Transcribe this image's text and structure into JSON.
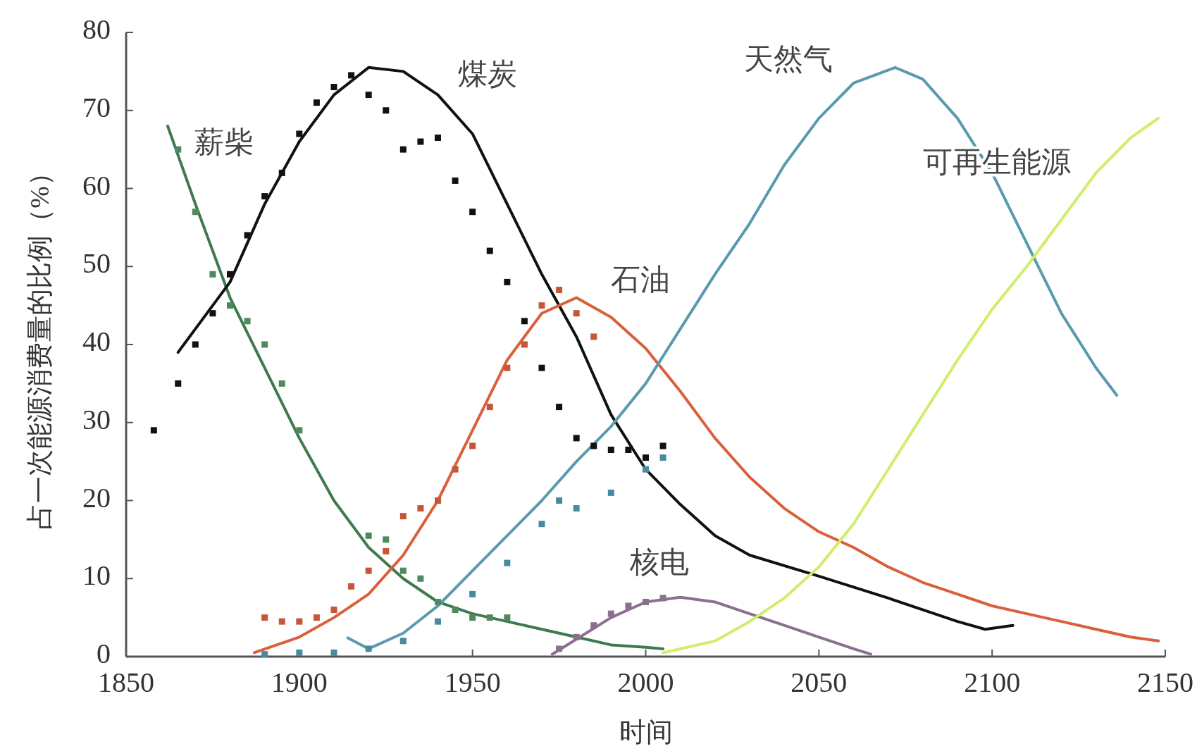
{
  "chart_data": {
    "type": "line",
    "xlabel": "时间",
    "ylabel": "占一次能源消费量的比例（%）",
    "xlim": [
      1850,
      2150
    ],
    "ylim": [
      0,
      80
    ],
    "xticks": [
      1850,
      1900,
      1950,
      2000,
      2050,
      2100,
      2150
    ],
    "yticks": [
      0,
      10,
      20,
      30,
      40,
      50,
      60,
      70,
      80
    ],
    "series": [
      {
        "name": "薪柴",
        "color": "#3f7a4f",
        "x": [
          1862,
          1870,
          1880,
          1890,
          1900,
          1910,
          1920,
          1930,
          1940,
          1950,
          1960,
          1970,
          1980,
          1990,
          2000,
          2005
        ],
        "values": [
          68,
          58,
          46,
          37,
          28,
          20,
          14,
          10,
          7,
          5.5,
          4.5,
          3.5,
          2.5,
          1.5,
          1.2,
          1
        ]
      },
      {
        "name": "煤炭",
        "color": "#111111",
        "x": [
          1865,
          1880,
          1890,
          1900,
          1910,
          1920,
          1930,
          1940,
          1950,
          1960,
          1970,
          1980,
          1990,
          2000,
          2010,
          2020,
          2030,
          2050,
          2070,
          2090,
          2098,
          2106
        ],
        "values": [
          39,
          48,
          58,
          66,
          72,
          75.5,
          75,
          72,
          67,
          58,
          49,
          41,
          31,
          24,
          19.5,
          15.5,
          13,
          10.3,
          7.5,
          4.5,
          3.5,
          4
        ]
      },
      {
        "name": "石油",
        "color": "#d9603b",
        "x": [
          1887,
          1900,
          1910,
          1920,
          1930,
          1940,
          1950,
          1960,
          1970,
          1980,
          1990,
          2000,
          2010,
          2020,
          2030,
          2040,
          2050,
          2060,
          2070,
          2080,
          2090,
          2100,
          2110,
          2120,
          2130,
          2140,
          2148
        ],
        "values": [
          0.5,
          2.5,
          5,
          8,
          13,
          20,
          29,
          38,
          44,
          46,
          43.5,
          39.5,
          34,
          28,
          23,
          19,
          16,
          14,
          11.5,
          9.5,
          8,
          6.5,
          5.5,
          4.5,
          3.5,
          2.5,
          2
        ]
      },
      {
        "name": "天然气",
        "color": "#5a9ab0",
        "x": [
          1914,
          1920,
          1930,
          1940,
          1950,
          1960,
          1970,
          1980,
          1990,
          2000,
          2010,
          2020,
          2030,
          2040,
          2050,
          2060,
          2072,
          2080,
          2090,
          2100,
          2110,
          2120,
          2130,
          2136
        ],
        "values": [
          2.4,
          1,
          3,
          6.5,
          11,
          15.5,
          20,
          25,
          29.5,
          35,
          42,
          49,
          55.5,
          63,
          69,
          73.5,
          75.5,
          74,
          69,
          62,
          53,
          44,
          37,
          33.5
        ]
      },
      {
        "name": "核电",
        "color": "#8a6f8f",
        "x": [
          1973,
          1990,
          2000,
          2010,
          2020,
          2030,
          2040,
          2050,
          2060,
          2065
        ],
        "values": [
          0.3,
          5,
          7,
          7.6,
          7,
          5.5,
          4,
          2.5,
          1,
          0.3
        ]
      },
      {
        "name": "可再生能源",
        "color": "#cfee6a",
        "x": [
          2005,
          2020,
          2030,
          2040,
          2050,
          2060,
          2070,
          2080,
          2090,
          2100,
          2110,
          2120,
          2130,
          2140,
          2148
        ],
        "values": [
          0.5,
          2,
          4.5,
          7.5,
          11.5,
          17,
          24,
          31,
          38,
          44.5,
          50,
          56,
          62,
          66.5,
          69
        ]
      },
      {
        "type": "scatter",
        "marker": "square",
        "color": "#4f8a5f",
        "x": [
          1865,
          1870,
          1875,
          1880,
          1885,
          1890,
          1895,
          1900,
          1920,
          1925,
          1930,
          1935,
          1940,
          1945,
          1950,
          1955,
          1960
        ],
        "values": [
          65,
          57,
          49,
          45,
          43,
          40,
          35,
          29,
          15.5,
          15,
          11,
          10,
          7,
          6,
          5,
          5,
          5
        ]
      },
      {
        "type": "scatter",
        "marker": "square",
        "color": "#111111",
        "x": [
          1858,
          1865,
          1870,
          1875,
          1880,
          1885,
          1890,
          1895,
          1900,
          1905,
          1910,
          1915,
          1920,
          1925,
          1930,
          1935,
          1940,
          1945,
          1950,
          1955,
          1960,
          1965,
          1970,
          1975,
          1980,
          1985,
          1990,
          1995,
          2000,
          2005
        ],
        "values": [
          29,
          35,
          40,
          44,
          49,
          54,
          59,
          62,
          67,
          71,
          73,
          74.5,
          72,
          70,
          65,
          66,
          66.5,
          61,
          57,
          52,
          48,
          43,
          37,
          32,
          28,
          27,
          26.5,
          26.5,
          25.5,
          27
        ]
      },
      {
        "type": "scatter",
        "marker": "square",
        "color": "#c8553a",
        "x": [
          1890,
          1895,
          1900,
          1905,
          1910,
          1915,
          1920,
          1925,
          1930,
          1935,
          1940,
          1945,
          1950,
          1955,
          1960,
          1965,
          1970,
          1975,
          1980,
          1985
        ],
        "values": [
          5,
          4.5,
          4.5,
          5,
          6,
          9,
          11,
          13.5,
          18,
          19,
          20,
          24,
          27,
          32,
          37,
          40,
          45,
          47,
          44,
          41
        ]
      },
      {
        "type": "scatter",
        "marker": "square",
        "color": "#4a8aa0",
        "x": [
          1890,
          1900,
          1910,
          1920,
          1930,
          1940,
          1950,
          1960,
          1970,
          1975,
          1980,
          1990,
          2000,
          2005
        ],
        "values": [
          0.3,
          0.5,
          0.5,
          1,
          2,
          4.5,
          8,
          12,
          17,
          20,
          19,
          21,
          24,
          25.5
        ]
      },
      {
        "type": "scatter",
        "marker": "square",
        "color": "#8a6f8f",
        "x": [
          1975,
          1980,
          1985,
          1990,
          1995,
          2000,
          2005
        ],
        "values": [
          1,
          2.5,
          4,
          5.5,
          6.5,
          7,
          7.5
        ]
      }
    ]
  }
}
